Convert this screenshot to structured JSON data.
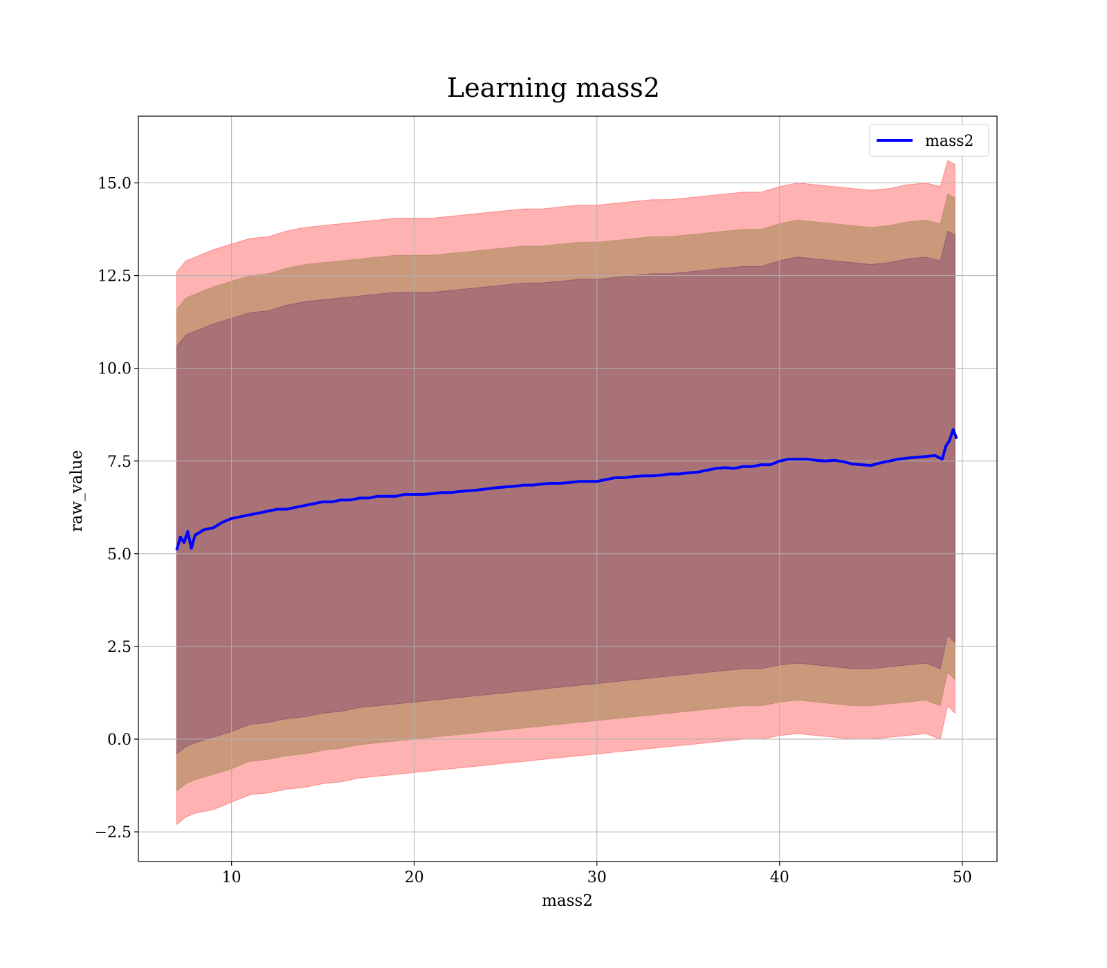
{
  "chart_data": {
    "type": "line",
    "title": "Learning mass2",
    "xlabel": "mass2",
    "ylabel": "raw_value",
    "xlim": [
      4.9,
      51.9
    ],
    "ylim": [
      -3.3,
      16.8
    ],
    "xticks": [
      10,
      20,
      30,
      40,
      50
    ],
    "xtick_labels": [
      "10",
      "20",
      "30",
      "40",
      "50"
    ],
    "yticks": [
      -2.5,
      0.0,
      2.5,
      5.0,
      7.5,
      10.0,
      12.5,
      15.0
    ],
    "ytick_labels": [
      "−2.5",
      "0.0",
      "2.5",
      "5.0",
      "7.5",
      "10.0",
      "12.5",
      "15.0"
    ],
    "grid": true,
    "legend_position": "upper right",
    "series": [
      {
        "name": "mass2",
        "color": "#0000ff",
        "x": [
          7.0,
          7.2,
          7.4,
          7.6,
          7.8,
          8.0,
          8.5,
          9.0,
          9.5,
          10.0,
          10.5,
          11.0,
          11.5,
          12.0,
          12.5,
          13.0,
          13.5,
          14.0,
          14.5,
          15.0,
          15.5,
          16.0,
          16.5,
          17.0,
          17.5,
          18.0,
          18.5,
          19.0,
          19.5,
          20.0,
          20.5,
          21.0,
          21.5,
          22.0,
          22.5,
          23.0,
          23.5,
          24.0,
          24.5,
          25.0,
          25.5,
          26.0,
          26.5,
          27.0,
          27.5,
          28.0,
          28.5,
          29.0,
          29.5,
          30.0,
          30.5,
          31.0,
          31.5,
          32.0,
          32.5,
          33.0,
          33.5,
          34.0,
          34.5,
          35.0,
          35.5,
          36.0,
          36.5,
          37.0,
          37.5,
          38.0,
          38.5,
          39.0,
          39.5,
          40.0,
          40.5,
          41.0,
          41.5,
          42.0,
          42.5,
          43.0,
          43.5,
          44.0,
          44.5,
          45.0,
          45.5,
          46.0,
          46.5,
          47.0,
          47.5,
          48.0,
          48.5,
          48.9,
          49.1,
          49.3,
          49.5,
          49.7
        ],
        "y": [
          5.1,
          5.45,
          5.3,
          5.6,
          5.15,
          5.5,
          5.65,
          5.7,
          5.85,
          5.95,
          6.0,
          6.05,
          6.1,
          6.15,
          6.2,
          6.2,
          6.25,
          6.3,
          6.35,
          6.4,
          6.4,
          6.45,
          6.45,
          6.5,
          6.5,
          6.55,
          6.55,
          6.55,
          6.6,
          6.6,
          6.6,
          6.62,
          6.65,
          6.65,
          6.68,
          6.7,
          6.72,
          6.75,
          6.78,
          6.8,
          6.82,
          6.85,
          6.85,
          6.88,
          6.9,
          6.9,
          6.92,
          6.95,
          6.95,
          6.95,
          7.0,
          7.05,
          7.05,
          7.08,
          7.1,
          7.1,
          7.12,
          7.15,
          7.15,
          7.18,
          7.2,
          7.25,
          7.3,
          7.32,
          7.3,
          7.35,
          7.35,
          7.4,
          7.4,
          7.5,
          7.55,
          7.55,
          7.55,
          7.52,
          7.5,
          7.52,
          7.48,
          7.42,
          7.4,
          7.38,
          7.45,
          7.5,
          7.55,
          7.58,
          7.6,
          7.62,
          7.65,
          7.55,
          7.9,
          8.05,
          8.35,
          8.1
        ]
      }
    ],
    "bands": [
      {
        "name": "",
        "color": "#ff0000",
        "opacity": 0.3,
        "x": [
          7.0,
          7.5,
          8.0,
          9.0,
          10.0,
          11.0,
          12.0,
          13.0,
          14.0,
          15.0,
          16.0,
          17.0,
          18.0,
          19.0,
          20.0,
          21.0,
          22.0,
          23.0,
          24.0,
          25.0,
          26.0,
          27.0,
          28.0,
          29.0,
          30.0,
          31.0,
          32.0,
          33.0,
          34.0,
          35.0,
          36.0,
          37.0,
          38.0,
          39.0,
          40.0,
          41.0,
          42.0,
          43.0,
          44.0,
          45.0,
          46.0,
          47.0,
          48.0,
          48.8,
          49.2,
          49.6
        ],
        "lower": [
          -2.3,
          -2.1,
          -2.0,
          -1.9,
          -1.7,
          -1.5,
          -1.45,
          -1.35,
          -1.3,
          -1.2,
          -1.15,
          -1.05,
          -1.0,
          -0.95,
          -0.9,
          -0.85,
          -0.8,
          -0.75,
          -0.7,
          -0.65,
          -0.6,
          -0.55,
          -0.5,
          -0.45,
          -0.4,
          -0.35,
          -0.3,
          -0.25,
          -0.2,
          -0.15,
          -0.1,
          -0.05,
          0.0,
          0.0,
          0.1,
          0.15,
          0.1,
          0.05,
          0.0,
          0.0,
          0.05,
          0.1,
          0.15,
          0.0,
          0.9,
          0.7
        ],
        "upper": [
          12.6,
          12.9,
          13.0,
          13.2,
          13.35,
          13.5,
          13.55,
          13.7,
          13.8,
          13.85,
          13.9,
          13.95,
          14.0,
          14.05,
          14.05,
          14.05,
          14.1,
          14.15,
          14.2,
          14.25,
          14.3,
          14.3,
          14.35,
          14.4,
          14.4,
          14.45,
          14.5,
          14.55,
          14.55,
          14.6,
          14.65,
          14.7,
          14.75,
          14.75,
          14.9,
          15.0,
          14.95,
          14.9,
          14.85,
          14.8,
          14.85,
          14.95,
          15.0,
          14.9,
          15.6,
          15.5
        ]
      },
      {
        "name": "",
        "color": "#8a7a3a",
        "opacity": 0.45,
        "x": [
          7.0,
          7.5,
          8.0,
          9.0,
          10.0,
          11.0,
          12.0,
          13.0,
          14.0,
          15.0,
          16.0,
          17.0,
          18.0,
          19.0,
          20.0,
          21.0,
          22.0,
          23.0,
          24.0,
          25.0,
          26.0,
          27.0,
          28.0,
          29.0,
          30.0,
          31.0,
          32.0,
          33.0,
          34.0,
          35.0,
          36.0,
          37.0,
          38.0,
          39.0,
          40.0,
          41.0,
          42.0,
          43.0,
          44.0,
          45.0,
          46.0,
          47.0,
          48.0,
          48.8,
          49.2,
          49.6
        ],
        "lower": [
          -1.4,
          -1.2,
          -1.1,
          -0.95,
          -0.8,
          -0.6,
          -0.55,
          -0.45,
          -0.4,
          -0.3,
          -0.25,
          -0.15,
          -0.1,
          -0.05,
          0.0,
          0.05,
          0.1,
          0.15,
          0.2,
          0.25,
          0.3,
          0.35,
          0.4,
          0.45,
          0.5,
          0.55,
          0.6,
          0.65,
          0.7,
          0.75,
          0.8,
          0.85,
          0.9,
          0.9,
          1.0,
          1.05,
          1.0,
          0.95,
          0.9,
          0.9,
          0.95,
          1.0,
          1.05,
          0.9,
          1.8,
          1.6
        ],
        "upper": [
          11.6,
          11.9,
          12.0,
          12.2,
          12.35,
          12.5,
          12.55,
          12.7,
          12.8,
          12.85,
          12.9,
          12.95,
          13.0,
          13.05,
          13.05,
          13.05,
          13.1,
          13.15,
          13.2,
          13.25,
          13.3,
          13.3,
          13.35,
          13.4,
          13.4,
          13.45,
          13.5,
          13.55,
          13.55,
          13.6,
          13.65,
          13.7,
          13.75,
          13.75,
          13.9,
          14.0,
          13.95,
          13.9,
          13.85,
          13.8,
          13.85,
          13.95,
          14.0,
          13.9,
          14.7,
          14.6
        ]
      },
      {
        "name": "",
        "color": "#5a1a6a",
        "opacity": 0.3,
        "x": [
          7.0,
          7.5,
          8.0,
          9.0,
          10.0,
          11.0,
          12.0,
          13.0,
          14.0,
          15.0,
          16.0,
          17.0,
          18.0,
          19.0,
          20.0,
          21.0,
          22.0,
          23.0,
          24.0,
          25.0,
          26.0,
          27.0,
          28.0,
          29.0,
          30.0,
          31.0,
          32.0,
          33.0,
          34.0,
          35.0,
          36.0,
          37.0,
          38.0,
          39.0,
          40.0,
          41.0,
          42.0,
          43.0,
          44.0,
          45.0,
          46.0,
          47.0,
          48.0,
          48.8,
          49.2,
          49.6
        ],
        "lower": [
          -0.4,
          -0.2,
          -0.1,
          0.05,
          0.2,
          0.4,
          0.45,
          0.55,
          0.6,
          0.7,
          0.75,
          0.85,
          0.9,
          0.95,
          1.0,
          1.05,
          1.1,
          1.15,
          1.2,
          1.25,
          1.3,
          1.35,
          1.4,
          1.45,
          1.5,
          1.55,
          1.6,
          1.65,
          1.7,
          1.75,
          1.8,
          1.85,
          1.9,
          1.9,
          2.0,
          2.05,
          2.0,
          1.95,
          1.9,
          1.9,
          1.95,
          2.0,
          2.05,
          1.9,
          2.8,
          2.6
        ],
        "upper": [
          10.6,
          10.9,
          11.0,
          11.2,
          11.35,
          11.5,
          11.55,
          11.7,
          11.8,
          11.85,
          11.9,
          11.95,
          12.0,
          12.05,
          12.05,
          12.05,
          12.1,
          12.15,
          12.2,
          12.25,
          12.3,
          12.3,
          12.35,
          12.4,
          12.4,
          12.45,
          12.5,
          12.55,
          12.55,
          12.6,
          12.65,
          12.7,
          12.75,
          12.75,
          12.9,
          13.0,
          12.95,
          12.9,
          12.85,
          12.8,
          12.85,
          12.95,
          13.0,
          12.9,
          13.7,
          13.6
        ]
      }
    ]
  }
}
